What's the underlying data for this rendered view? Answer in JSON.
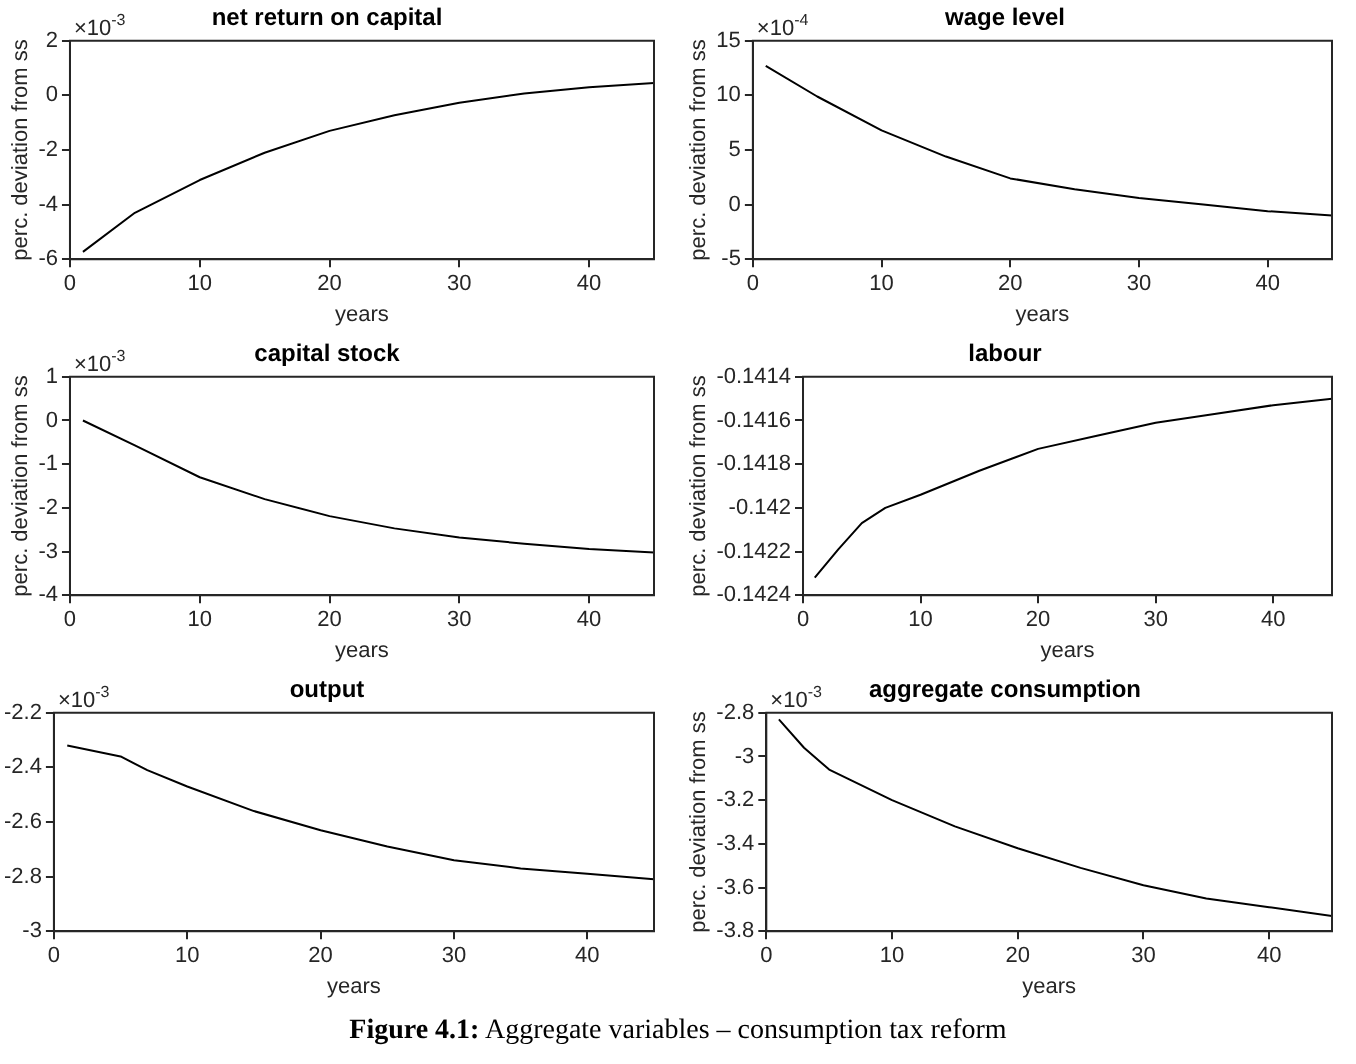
{
  "chart_data": [
    {
      "type": "line",
      "title": "net return on capital",
      "xlabel": "years",
      "ylabel": "perc. deviation from ss",
      "annotations": [
        "×10$^{-3}$"
      ],
      "xlim": [
        0,
        45
      ],
      "xticks": [
        0,
        10,
        20,
        30,
        40
      ],
      "ylim": [
        -6,
        2
      ],
      "yticks": [
        -6,
        -4,
        -2,
        0,
        2
      ],
      "x": [
        1,
        5,
        10,
        15,
        20,
        25,
        30,
        35,
        40,
        45
      ],
      "series": [
        {
          "color": "#000000",
          "values": [
            -5.73,
            -4.3,
            -3.1,
            -2.1,
            -1.3,
            -0.73,
            -0.27,
            0.07,
            0.3,
            0.45
          ]
        }
      ]
    },
    {
      "type": "line",
      "title": "wage level",
      "xlabel": "years",
      "ylabel": "perc. deviation from ss",
      "annotations": [
        "×10$^{-4}$"
      ],
      "xlim": [
        0,
        45
      ],
      "xticks": [
        0,
        10,
        20,
        30,
        40
      ],
      "ylim": [
        -5,
        15
      ],
      "yticks": [
        -5,
        0,
        5,
        10,
        15
      ],
      "x": [
        1,
        5,
        10,
        15,
        20,
        25,
        30,
        35,
        40,
        45
      ],
      "series": [
        {
          "color": "#000000",
          "values": [
            12.7,
            9.9,
            6.8,
            4.4,
            2.4,
            1.4,
            0.6,
            0,
            -0.6,
            -1.0
          ]
        }
      ]
    },
    {
      "type": "line",
      "title": "capital stock",
      "xlabel": "years",
      "ylabel": "perc. deviation from ss",
      "annotations": [
        "×10$^{-3}$"
      ],
      "xlim": [
        0,
        45
      ],
      "xticks": [
        0,
        10,
        20,
        30,
        40
      ],
      "ylim": [
        -4,
        1
      ],
      "yticks": [
        -4,
        -3,
        -2,
        -1,
        0,
        1
      ],
      "x": [
        1,
        5,
        10,
        15,
        20,
        25,
        30,
        35,
        40,
        45
      ],
      "series": [
        {
          "color": "#000000",
          "values": [
            0,
            -0.57,
            -1.3,
            -1.8,
            -2.19,
            -2.47,
            -2.68,
            -2.82,
            -2.94,
            -3.02
          ]
        }
      ]
    },
    {
      "type": "line",
      "title": "labour",
      "xlabel": "years",
      "ylabel": "perc. deviation from ss",
      "xlim": [
        0,
        45
      ],
      "xticks": [
        0,
        10,
        20,
        30,
        40
      ],
      "ylim": [
        -0.1424,
        -0.1414
      ],
      "yticks": [
        -0.1424,
        -0.1422,
        -0.142,
        -0.1418,
        -0.1416,
        -0.1414
      ],
      "x": [
        1,
        3,
        5,
        7,
        10,
        15,
        20,
        25,
        30,
        35,
        40,
        45
      ],
      "series": [
        {
          "color": "#000000",
          "values": [
            -0.14232,
            -0.14219,
            -0.14207,
            -0.142,
            -0.14194,
            -0.14183,
            -0.14173,
            -0.14167,
            -0.14161,
            -0.14157,
            -0.14153,
            -0.1415
          ]
        }
      ]
    },
    {
      "type": "line",
      "title": "output",
      "xlabel": "years",
      "annotations": [
        "×10$^{-3}$"
      ],
      "xlim": [
        0,
        45
      ],
      "xticks": [
        0,
        10,
        20,
        30,
        40
      ],
      "ylim": [
        -3,
        -2.2
      ],
      "yticks": [
        -3,
        -2.8,
        -2.6,
        -2.4,
        -2.2
      ],
      "x": [
        1,
        5,
        7,
        10,
        15,
        20,
        25,
        30,
        35,
        40,
        45
      ],
      "series": [
        {
          "color": "#000000",
          "values": [
            -2.32,
            -2.36,
            -2.41,
            -2.47,
            -2.56,
            -2.63,
            -2.69,
            -2.74,
            -2.77,
            -2.79,
            -2.81
          ]
        }
      ]
    },
    {
      "type": "line",
      "title": "aggregate consumption",
      "xlabel": "years",
      "ylabel": "perc. deviation from ss",
      "annotations": [
        "×10$^{-3}$"
      ],
      "xlim": [
        0,
        45
      ],
      "xticks": [
        0,
        10,
        20,
        30,
        40
      ],
      "ylim": [
        -3.8,
        -2.8
      ],
      "yticks": [
        -3.8,
        -3.6,
        -3.4,
        -3.2,
        -3,
        -2.8
      ],
      "x": [
        1,
        3,
        5,
        10,
        15,
        20,
        25,
        30,
        35,
        40,
        45
      ],
      "series": [
        {
          "color": "#000000",
          "values": [
            -2.83,
            -2.96,
            -3.06,
            -3.2,
            -3.32,
            -3.42,
            -3.51,
            -3.59,
            -3.65,
            -3.69,
            -3.73
          ]
        }
      ]
    },
    {
      "type": "other",
      "annotations": [
        "Figure 4.1: Aggregate variables – consumption tax reform"
      ]
    }
  ]
}
